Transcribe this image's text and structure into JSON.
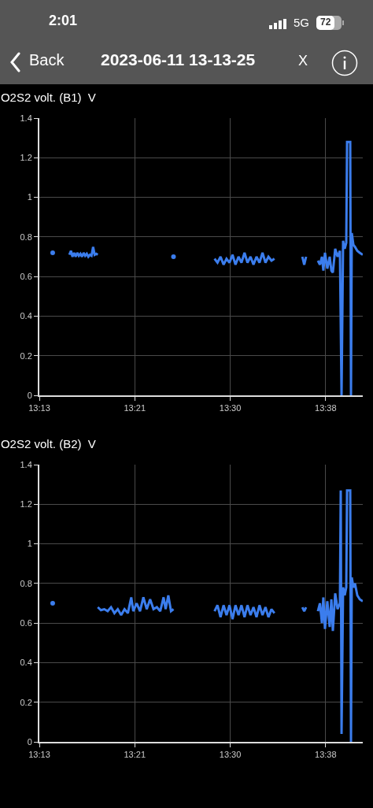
{
  "chart_data": [
    {
      "type": "other",
      "title": "2023-06-11 13-13-25",
      "annotations": [
        "2:01",
        "5G",
        "72",
        "Back",
        "X"
      ]
    },
    {
      "type": "line",
      "title": "O2S2 volt. (B1)  V",
      "marker": "none",
      "line_style": "solid",
      "grid": true,
      "xlim": [
        13.2167,
        13.6967
      ],
      "xticks": [
        {
          "value": 13.2167,
          "label": "13:13"
        },
        {
          "value": 13.3583,
          "label": "13:21"
        },
        {
          "value": 13.5,
          "label": "13:30"
        },
        {
          "value": 13.6416,
          "label": "13:38"
        }
      ],
      "ylim": [
        0,
        1.4
      ],
      "yticks": [
        0,
        0.2,
        0.4,
        0.6,
        0.8,
        1,
        1.2,
        1.4
      ],
      "series": [
        {
          "type": "line",
          "color": "#3b7ded",
          "x": [
            13.2612,
            13.2636,
            13.2659,
            13.2683,
            13.2706,
            13.273,
            13.2753,
            13.2777,
            13.28,
            13.2824,
            13.2847,
            13.2871,
            13.2894,
            13.2918,
            13.2941,
            13.2965,
            13.2988,
            13.3012,
            13.3034,
            13.4461,
            13.4767,
            13.4811,
            13.4856,
            13.4901,
            13.4945,
            13.4989,
            13.5034,
            13.5078,
            13.5123,
            13.5167,
            13.5212,
            13.5256,
            13.5301,
            13.5345,
            13.539,
            13.5434,
            13.5479,
            13.5523,
            13.5567,
            13.5612,
            13.5656,
            13.5871,
            13.607,
            13.6098,
            13.6126,
            13.6221,
            13.6301,
            13.6331,
            13.6361,
            13.6382,
            13.6406,
            13.6441,
            13.6476,
            13.6501,
            13.6523,
            13.6558,
            13.6593,
            13.6628,
            13.6652,
            13.6675,
            13.6699,
            13.6722,
            13.6734,
            13.6781,
            13.6792,
            13.6804,
            13.6828,
            13.6851,
            13.6886,
            13.6922,
            13.6967
          ],
          "values": [
            0.71,
            0.73,
            0.7,
            0.72,
            0.7,
            0.72,
            0.705,
            0.715,
            0.7,
            0.72,
            0.705,
            0.715,
            0.7,
            0.71,
            0.705,
            0.75,
            0.71,
            0.715,
            0.71,
            null,
            0.69,
            0.67,
            0.7,
            0.66,
            0.69,
            0.67,
            0.71,
            0.66,
            0.7,
            0.67,
            0.72,
            0.67,
            0.7,
            0.66,
            0.7,
            0.67,
            0.72,
            0.67,
            0.7,
            0.68,
            0.69,
            null,
            0.7,
            0.66,
            0.7,
            null,
            0.68,
            0.66,
            0.7,
            0.63,
            0.72,
            0.64,
            0.7,
            0.63,
            0.62,
            0.74,
            0.7,
            0.73,
            0,
            0.78,
            0.74,
            0.77,
            1.28,
            1.28,
            0,
            0.82,
            0.76,
            0.75,
            0.73,
            0.72,
            0.71
          ]
        },
        {
          "type": "scatter",
          "color": "#3b7ded",
          "marker": "circle",
          "x": [
            13.2365,
            13.4158
          ],
          "values": [
            0.72,
            0.7
          ]
        }
      ]
    },
    {
      "type": "line",
      "title": "O2S2 volt. (B2)  V",
      "marker": "none",
      "line_style": "solid",
      "grid": true,
      "xlim": [
        13.2167,
        13.6967
      ],
      "xticks": [
        {
          "value": 13.2167,
          "label": "13:13"
        },
        {
          "value": 13.3583,
          "label": "13:21"
        },
        {
          "value": 13.5,
          "label": "13:30"
        },
        {
          "value": 13.6416,
          "label": "13:38"
        }
      ],
      "ylim": [
        0,
        1.4
      ],
      "yticks": [
        0,
        0.2,
        0.4,
        0.6,
        0.8,
        1,
        1.2,
        1.4
      ],
      "series": [
        {
          "type": "line",
          "color": "#3b7ded",
          "x": [
            13.3034,
            13.3081,
            13.3131,
            13.3181,
            13.3231,
            13.3281,
            13.3331,
            13.3381,
            13.3431,
            13.3481,
            13.3531,
            13.3561,
            13.3611,
            13.3661,
            13.3711,
            13.3761,
            13.3811,
            13.3861,
            13.3911,
            13.3961,
            13.4011,
            13.4041,
            13.4081,
            13.4121,
            13.4158,
            13.4461,
            13.4767,
            13.4811,
            13.4856,
            13.4901,
            13.4945,
            13.4989,
            13.5034,
            13.5078,
            13.5123,
            13.5167,
            13.5212,
            13.5256,
            13.5301,
            13.5345,
            13.539,
            13.5434,
            13.5479,
            13.5523,
            13.5567,
            13.5612,
            13.5656,
            13.5871,
            13.607,
            13.6098,
            13.6126,
            13.6221,
            13.6301,
            13.6331,
            13.6361,
            13.6382,
            13.6406,
            13.6441,
            13.6476,
            13.6501,
            13.6523,
            13.6558,
            13.6593,
            13.6628,
            13.664,
            13.6652,
            13.6675,
            13.6699,
            13.6722,
            13.6734,
            13.6781,
            13.6792,
            13.6804,
            13.6828,
            13.6851,
            13.6886,
            13.6922,
            13.6967
          ],
          "values": [
            0.68,
            0.665,
            0.67,
            0.66,
            0.68,
            0.65,
            0.67,
            0.64,
            0.67,
            0.65,
            0.73,
            0.66,
            0.7,
            0.66,
            0.73,
            0.67,
            0.72,
            0.67,
            0.68,
            0.66,
            0.73,
            0.67,
            0.74,
            0.66,
            0.67,
            null,
            0.66,
            0.69,
            0.63,
            0.69,
            0.64,
            0.69,
            0.62,
            0.69,
            0.64,
            0.69,
            0.63,
            0.69,
            0.64,
            0.68,
            0.63,
            0.69,
            0.64,
            0.68,
            0.63,
            0.67,
            0.65,
            null,
            0.68,
            0.66,
            0.68,
            null,
            0.66,
            0.7,
            0.6,
            0.73,
            0.57,
            0.71,
            0.58,
            0.72,
            0.56,
            0.75,
            0.67,
            0.7,
            1.27,
            0.04,
            0.78,
            0.74,
            0.78,
            1.27,
            1.27,
            0,
            0.83,
            0.78,
            0.8,
            0.74,
            0.72,
            0.71
          ]
        },
        {
          "type": "scatter",
          "color": "#3b7ded",
          "marker": "circle",
          "x": [
            13.2365
          ],
          "values": [
            0.7
          ]
        }
      ]
    }
  ]
}
